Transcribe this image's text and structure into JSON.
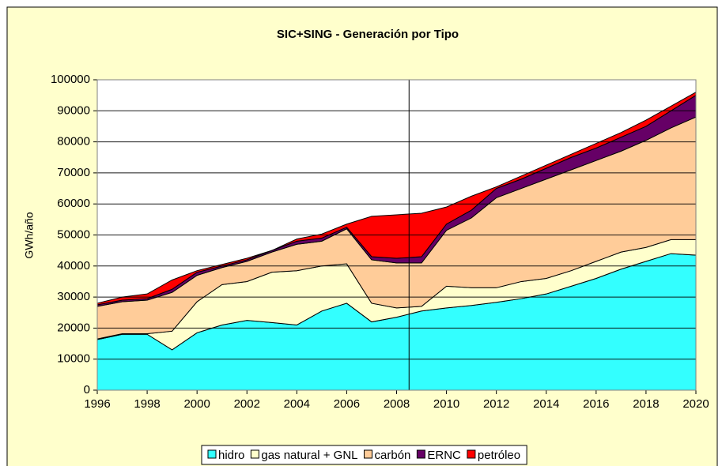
{
  "chart_data": {
    "type": "stacked_area",
    "title": "SIC+SING - Generación por Tipo",
    "y_label": "GWh/año",
    "x": [
      1996,
      1997,
      1998,
      1999,
      2000,
      2001,
      2002,
      2003,
      2004,
      2005,
      2006,
      2007,
      2008,
      2009,
      2010,
      2011,
      2012,
      2013,
      2014,
      2015,
      2016,
      2017,
      2018,
      2019,
      2020
    ],
    "series": [
      {
        "name": "hidro",
        "color": "#33ffff",
        "values": [
          16300,
          18000,
          18000,
          13000,
          18500,
          21000,
          22500,
          21800,
          21000,
          25500,
          28000,
          22000,
          23500,
          25500,
          26500,
          27300,
          28300,
          29500,
          31000,
          33500,
          36000,
          39000,
          41500,
          44000,
          43500
        ]
      },
      {
        "name": "gas natural + GNL",
        "color": "#ffffcc",
        "values": [
          200,
          200,
          200,
          6000,
          10000,
          13000,
          12500,
          16200,
          17500,
          14500,
          12700,
          6000,
          3000,
          1500,
          7000,
          5700,
          4700,
          5500,
          5000,
          5000,
          5500,
          5500,
          4500,
          4500,
          5000
        ]
      },
      {
        "name": "carbón",
        "color": "#ffcc99",
        "values": [
          10500,
          10300,
          10800,
          12500,
          8500,
          5500,
          6500,
          6500,
          8500,
          8000,
          11300,
          14000,
          14500,
          14000,
          18000,
          22500,
          29000,
          30000,
          32000,
          32500,
          32500,
          32500,
          34500,
          36000,
          39500
        ]
      },
      {
        "name": "ERNC",
        "color": "#660066",
        "values": [
          500,
          500,
          500,
          1000,
          1000,
          500,
          500,
          500,
          1000,
          1000,
          500,
          1000,
          1500,
          2000,
          2000,
          2500,
          3000,
          3000,
          3500,
          4000,
          4000,
          4500,
          4500,
          5500,
          7000
        ]
      },
      {
        "name": "petróleo",
        "color": "#ff0000",
        "values": [
          500,
          1000,
          1500,
          3000,
          500,
          500,
          500,
          0,
          700,
          1300,
          1000,
          13000,
          14000,
          14000,
          5500,
          4500,
          500,
          1000,
          1000,
          1000,
          1500,
          1500,
          2000,
          1500,
          1000
        ]
      }
    ],
    "xlim": [
      1996,
      2020
    ],
    "xticks": [
      1996,
      1998,
      2000,
      2002,
      2004,
      2006,
      2008,
      2010,
      2012,
      2014,
      2016,
      2018,
      2020
    ],
    "ylim": [
      0,
      100000
    ],
    "yticks": [
      0,
      10000,
      20000,
      30000,
      40000,
      50000,
      60000,
      70000,
      80000,
      90000,
      100000
    ],
    "vline": 2008.5,
    "grid": true,
    "legend": "bottom"
  }
}
